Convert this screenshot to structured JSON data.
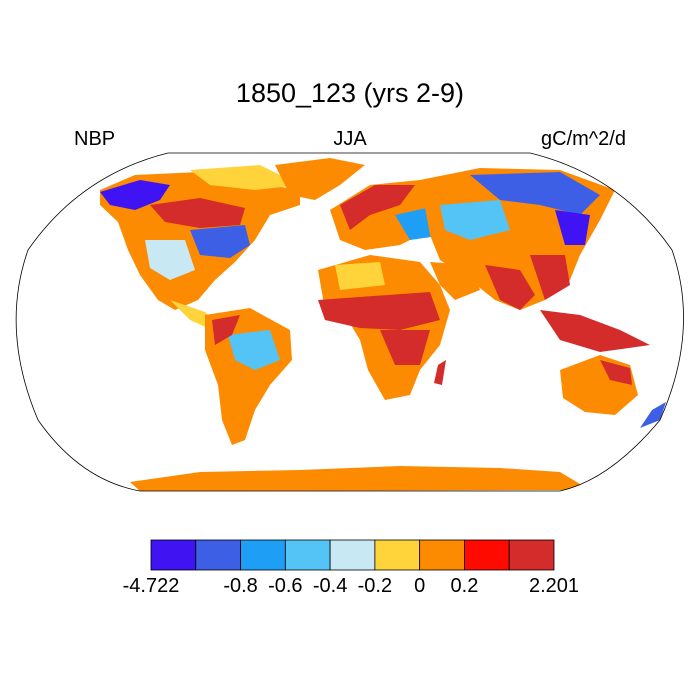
{
  "title": "1850_123 (yrs 2-9)",
  "variable": "NBP",
  "season": "JJA",
  "units": "gC/m^2/d",
  "colorbar": {
    "colors": [
      "#4013f2",
      "#3d5fe6",
      "#1f9ef6",
      "#53c4f5",
      "#c8e8f4",
      "#ffd43b",
      "#fd8b01",
      "#ff0a00",
      "#d42b2b"
    ],
    "labels": [
      {
        "text": "-4.722",
        "boundary": 0
      },
      {
        "text": "-0.8",
        "boundary": 2
      },
      {
        "text": "-0.6",
        "boundary": 3
      },
      {
        "text": "-0.4",
        "boundary": 4
      },
      {
        "text": "-0.2",
        "boundary": 5
      },
      {
        "text": "0",
        "boundary": 6
      },
      {
        "text": "0.2",
        "boundary": 7
      },
      {
        "text": "2.201",
        "boundary": 9
      }
    ]
  },
  "colors": {
    "ocean": "#ffffff",
    "outline": "#000000"
  }
}
